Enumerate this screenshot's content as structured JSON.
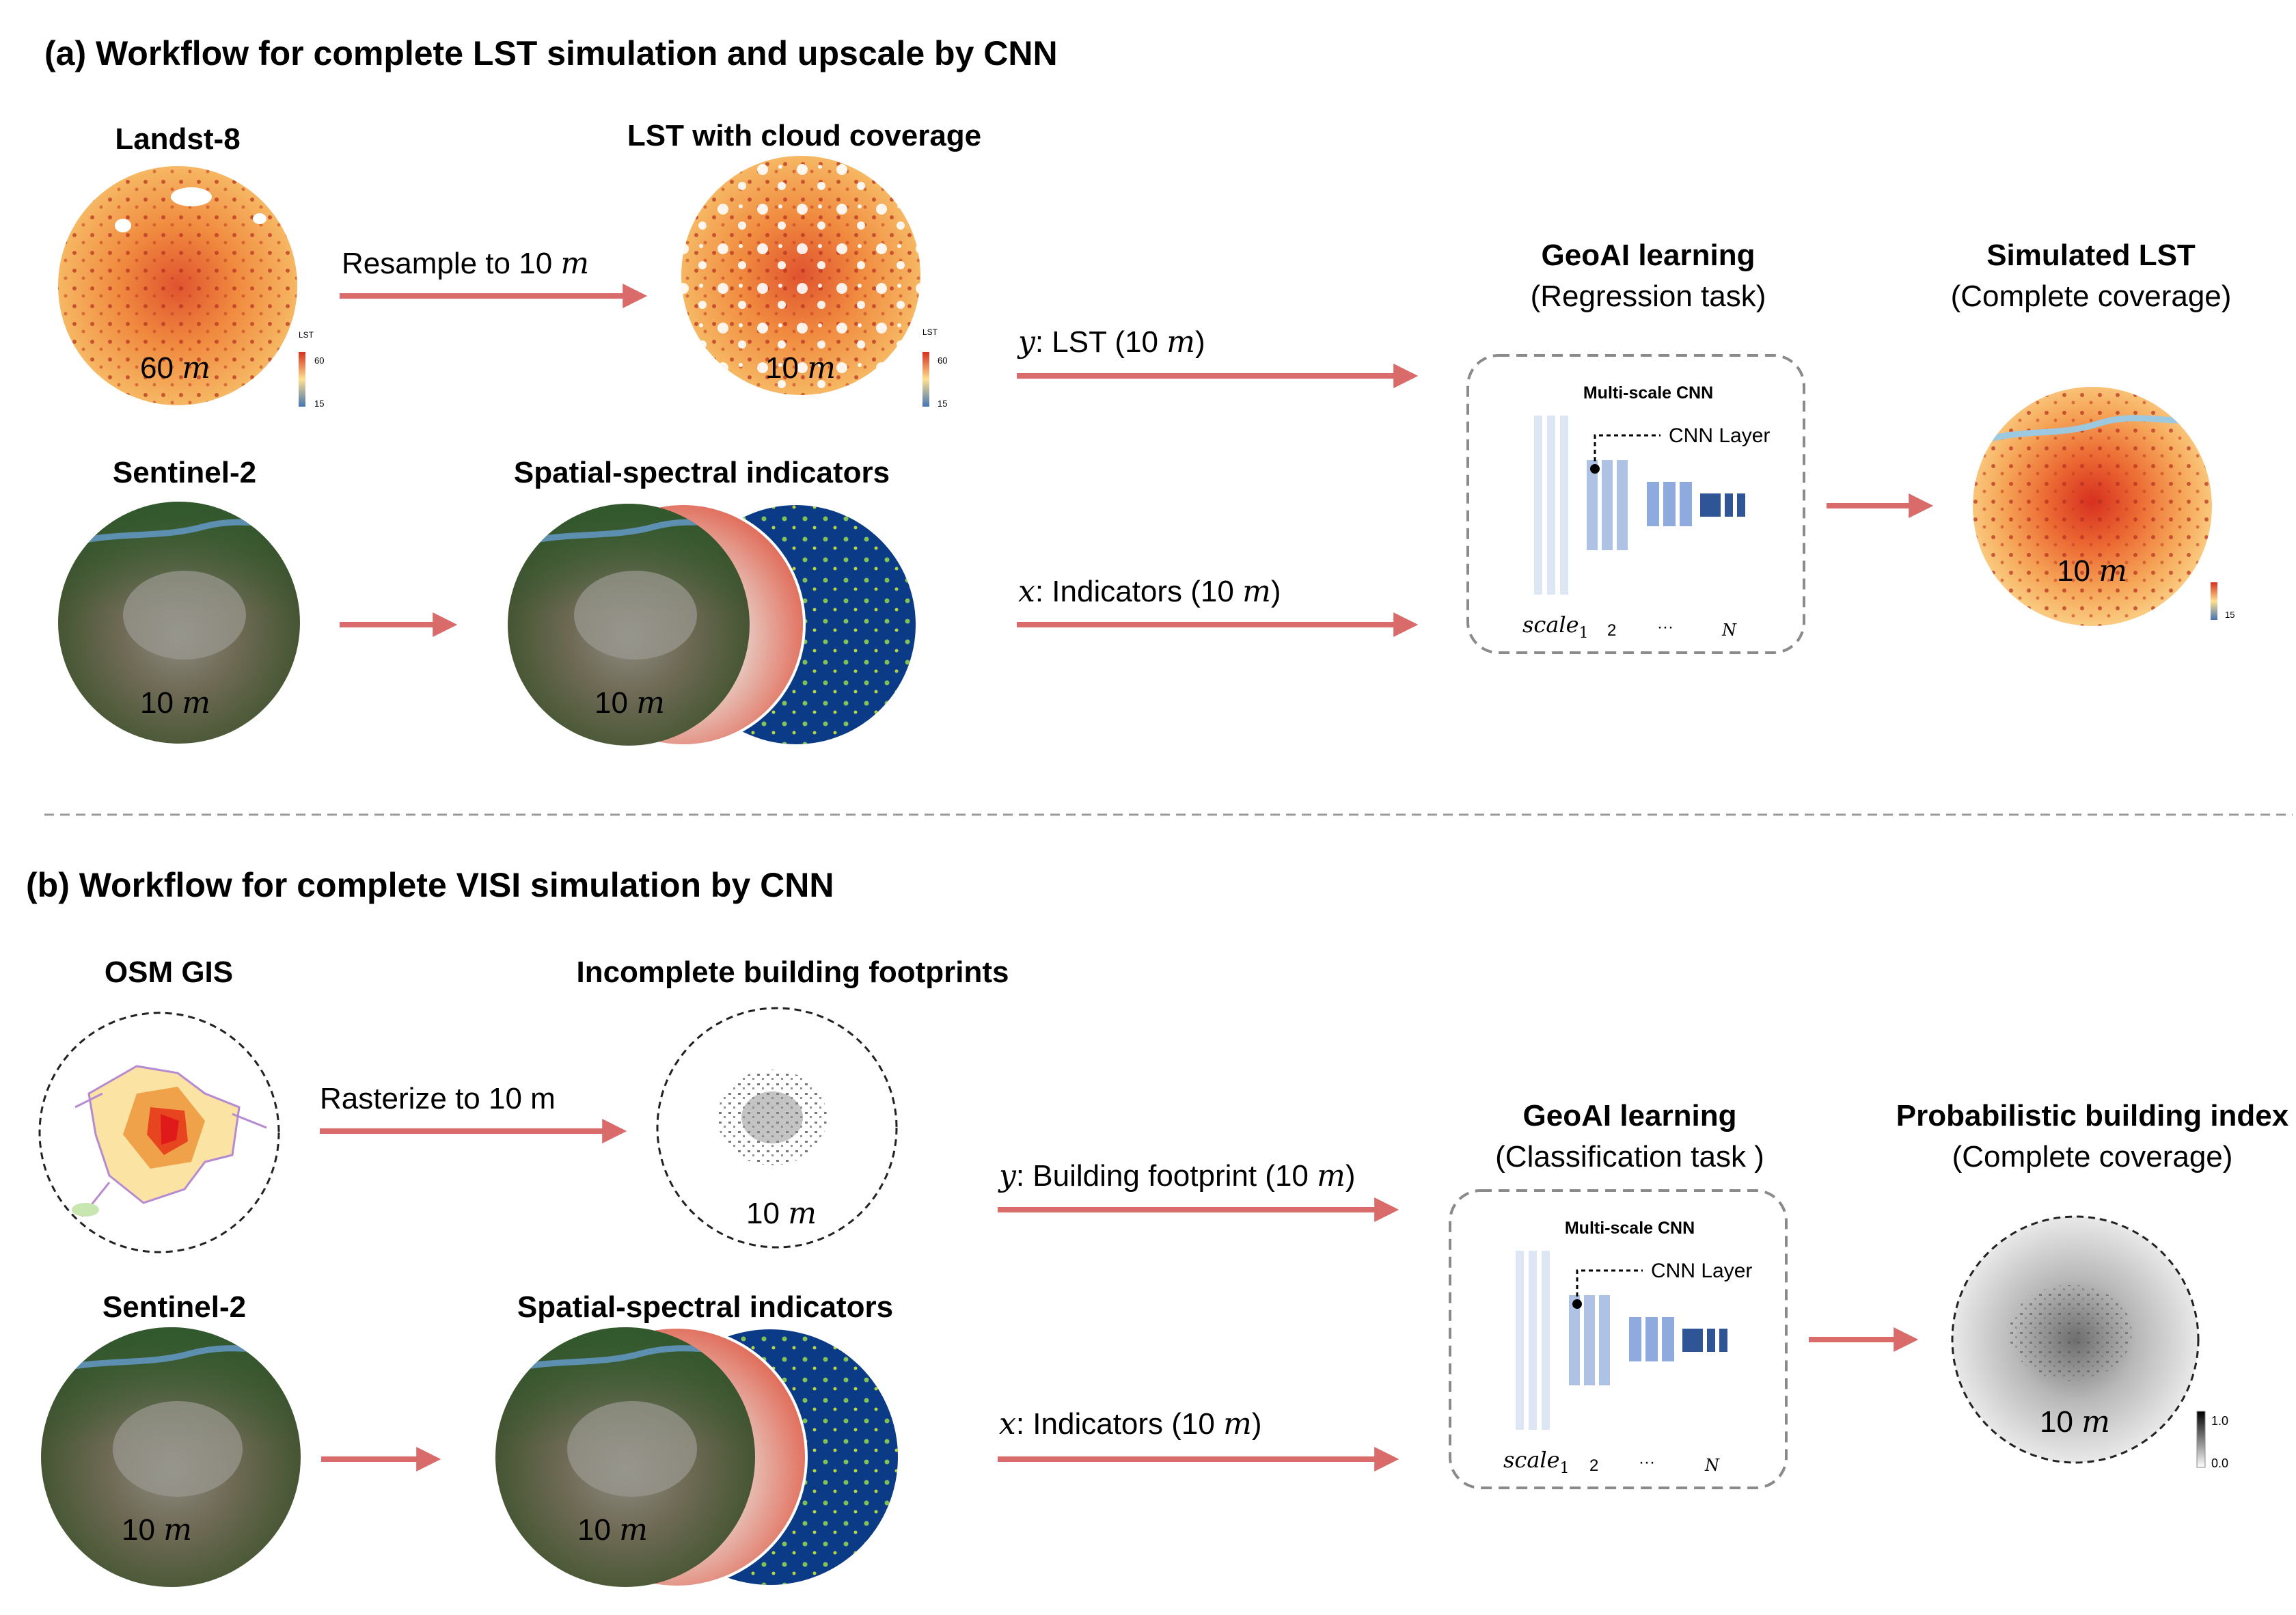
{
  "colors": {
    "arrow": "#d96b6b",
    "cnn_light": "#dde6f3",
    "cnn_mid": "#8faadc",
    "cnn_dark": "#2f5597",
    "lst_hot": "#d7301f",
    "lst_warm": "#fdae61",
    "lst_cool": "#4575b4",
    "vegetation": "#3c5f2f",
    "water": "#0b3b86"
  },
  "part_a": {
    "title": "(a) Workflow for complete LST simulation and upscale by CNN",
    "landsat_label": "Landst-8",
    "landsat_res": "60",
    "lst_cloud_label": "LST with cloud coverage",
    "lst_cloud_res": "10",
    "resample_label": "Resample to 10",
    "legend_title": "LST",
    "legend_max": "60",
    "legend_min": "15",
    "sentinel_label": "Sentinel-2",
    "sentinel_res": "10",
    "indicators_label": "Spatial-spectral indicators",
    "indicators_res": "10",
    "y_var": "y",
    "y_text": ": LST (10 ",
    "x_var": "x",
    "x_text": ": Indicators (10 ",
    "close_paren": ")",
    "geoai_title": "GeoAI learning",
    "geoai_task": "(Regression task)",
    "cnn_title": "Multi-scale CNN",
    "cnn_layer": "CNN Layer",
    "scale_label": "scale",
    "scale_sub": "1",
    "scale_2": "2",
    "scale_dots": "···",
    "scale_n": "N",
    "output_title": "Simulated LST",
    "output_sub": "(Complete coverage)",
    "output_res": "10",
    "output_legend_min": "15"
  },
  "part_b": {
    "title": "(b) Workflow for complete VISI simulation by CNN",
    "osm_label": "OSM GIS",
    "rasterize_label": "Rasterize to 10 m",
    "footprint_label": "Incomplete building footprints",
    "footprint_res": "10",
    "sentinel_label": "Sentinel-2",
    "sentinel_res": "10",
    "indicators_label": "Spatial-spectral indicators",
    "indicators_res": "10",
    "y_var": "y",
    "y_text": ": Building footprint (10 ",
    "x_var": "x",
    "x_text": ": Indicators (10 ",
    "close_paren": ")",
    "geoai_title": "GeoAI learning",
    "geoai_task": "(Classification task )",
    "cnn_title": "Multi-scale CNN",
    "cnn_layer": "CNN Layer",
    "scale_label": "scale",
    "scale_sub": "1",
    "scale_2": "2",
    "scale_dots": "···",
    "scale_n": "N",
    "output_title": "Probabilistic building index",
    "output_sub": "(Complete coverage)",
    "output_res": "10",
    "legend_max": "1.0",
    "legend_min": "0.0"
  },
  "unit_m": "m"
}
